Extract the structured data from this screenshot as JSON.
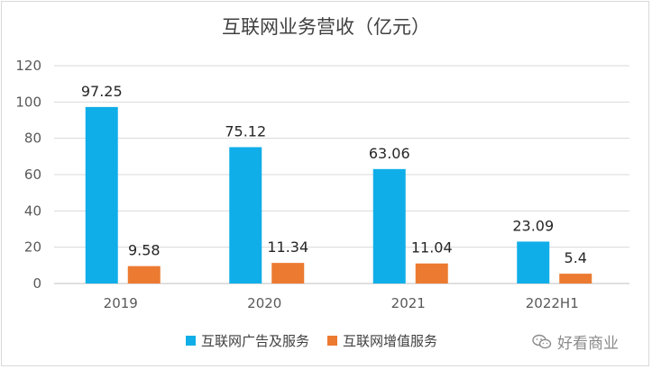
{
  "chart_data": {
    "type": "bar",
    "title": "互联网业务营收（亿元）",
    "categories": [
      "2019",
      "2020",
      "2021",
      "2022H1"
    ],
    "series": [
      {
        "name": "互联网广告及服务",
        "color": "#10aee8",
        "values": [
          97.25,
          75.12,
          63.06,
          23.09
        ],
        "labels": [
          "97.25",
          "75.12",
          "63.06",
          "23.09"
        ]
      },
      {
        "name": "互联网增值服务",
        "color": "#ec7a31",
        "values": [
          9.58,
          11.34,
          11.04,
          5.4
        ],
        "labels": [
          "9.58",
          "11.34",
          "11.04",
          "5.4"
        ]
      }
    ],
    "ylim": [
      0,
      120
    ],
    "yticks": [
      0,
      20,
      40,
      60,
      80,
      100,
      120
    ],
    "grid": true,
    "legend_position": "bottom"
  },
  "watermark": {
    "text": "好看商业",
    "icon": "wechat-icon"
  }
}
